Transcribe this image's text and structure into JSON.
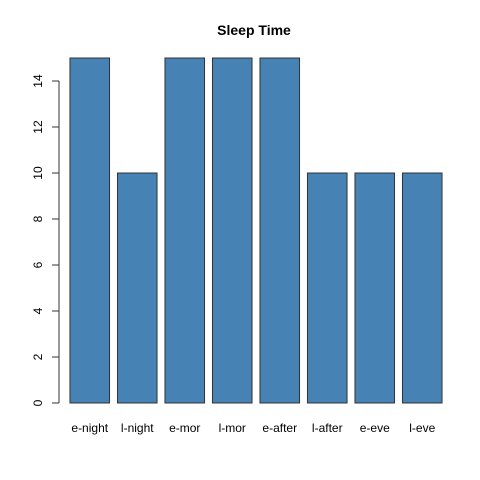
{
  "chart_data": {
    "type": "bar",
    "title": "Sleep Time",
    "xlabel": "",
    "ylabel": "",
    "categories": [
      "e-night",
      "l-night",
      "e-mor",
      "l-mor",
      "e-after",
      "l-after",
      "e-eve",
      "l-eve"
    ],
    "values": [
      15,
      10,
      15,
      15,
      15,
      10,
      10,
      10
    ],
    "ylim": [
      0,
      15
    ],
    "yticks": [
      0,
      2,
      4,
      6,
      8,
      10,
      12,
      14
    ],
    "grid": false,
    "legend": "none",
    "bar_color": "#4682b4",
    "bar_stroke": "#333333"
  }
}
